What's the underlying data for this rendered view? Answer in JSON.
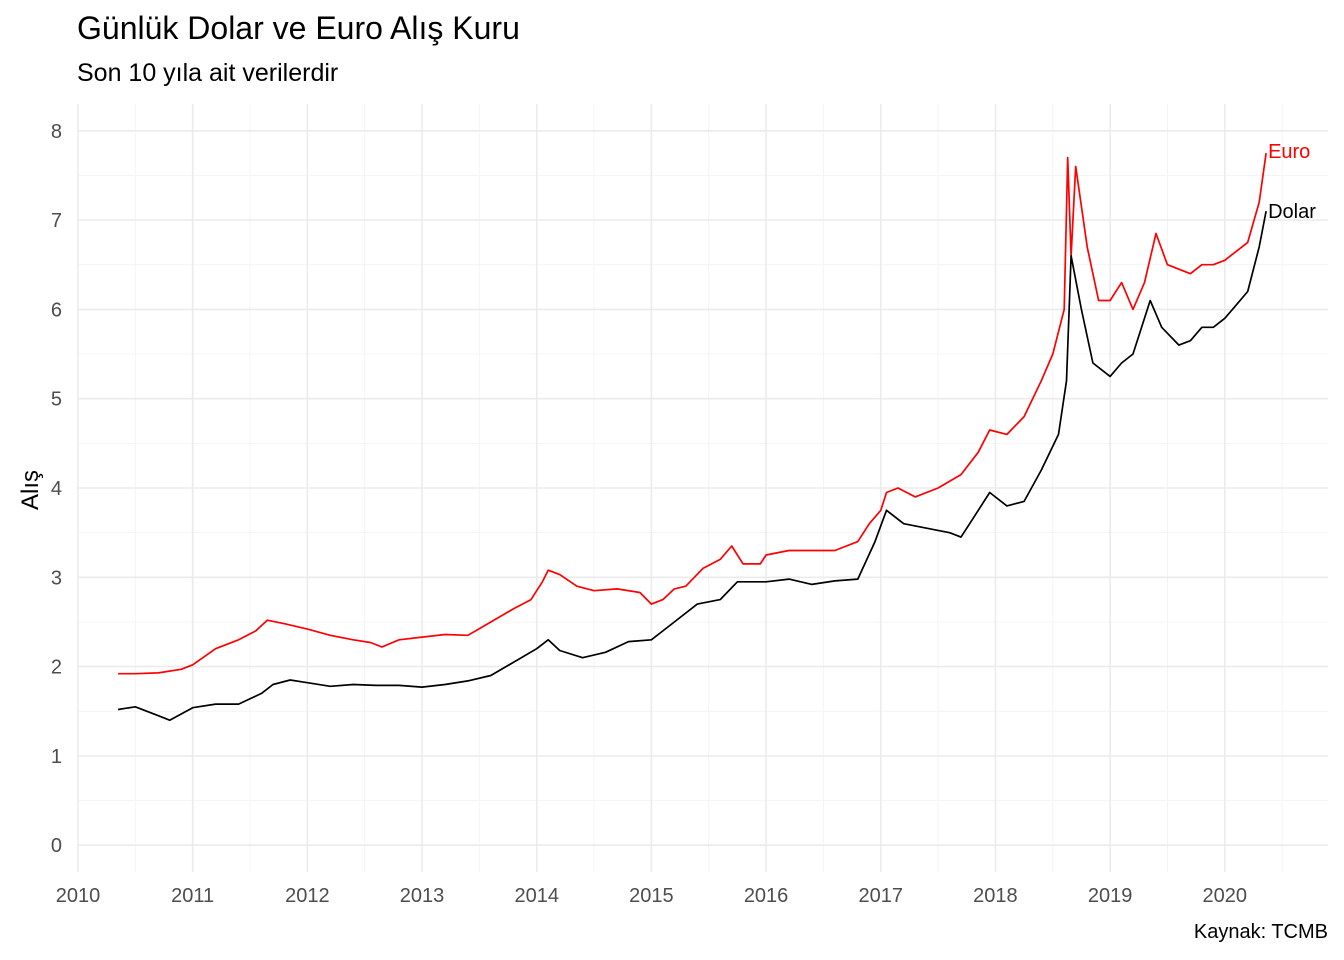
{
  "title": "Günlük Dolar ve Euro Alış Kuru",
  "subtitle": "Son 10 yıla ait verilerdir",
  "caption": "Kaynak: TCMB",
  "chart_data": {
    "type": "line",
    "title": "Günlük Dolar ve Euro Alış Kuru",
    "subtitle": "Son 10 yıla ait verilerdir",
    "xlabel": "",
    "ylabel": "Alış",
    "xlim": [
      2010,
      2020.9
    ],
    "ylim": [
      -0.3,
      8.3
    ],
    "x_ticks": [
      "2010",
      "2011",
      "2012",
      "2013",
      "2014",
      "2015",
      "2016",
      "2017",
      "2018",
      "2019",
      "2020"
    ],
    "y_ticks": [
      0,
      1,
      2,
      3,
      4,
      5,
      6,
      7,
      8
    ],
    "grid": true,
    "legend": "none (direct labels at line ends)",
    "series": [
      {
        "name": "Euro",
        "color": "#ff0000",
        "x": [
          2010.35,
          2010.5,
          2010.7,
          2010.9,
          2011.0,
          2011.2,
          2011.4,
          2011.55,
          2011.65,
          2011.8,
          2012.0,
          2012.2,
          2012.4,
          2012.55,
          2012.65,
          2012.8,
          2013.0,
          2013.2,
          2013.4,
          2013.6,
          2013.8,
          2013.95,
          2014.05,
          2014.1,
          2014.2,
          2014.35,
          2014.5,
          2014.7,
          2014.9,
          2015.0,
          2015.1,
          2015.2,
          2015.3,
          2015.45,
          2015.6,
          2015.7,
          2015.8,
          2015.95,
          2016.0,
          2016.2,
          2016.4,
          2016.6,
          2016.8,
          2016.9,
          2017.0,
          2017.05,
          2017.15,
          2017.3,
          2017.5,
          2017.7,
          2017.85,
          2017.95,
          2018.1,
          2018.25,
          2018.4,
          2018.5,
          2018.6,
          2018.63,
          2018.66,
          2018.7,
          2018.8,
          2018.9,
          2019.0,
          2019.1,
          2019.2,
          2019.3,
          2019.4,
          2019.5,
          2019.6,
          2019.7,
          2019.8,
          2019.9,
          2020.0,
          2020.1,
          2020.2,
          2020.3,
          2020.36
        ],
        "values": [
          1.92,
          1.92,
          1.93,
          1.97,
          2.02,
          2.2,
          2.3,
          2.4,
          2.52,
          2.48,
          2.42,
          2.35,
          2.3,
          2.27,
          2.22,
          2.3,
          2.33,
          2.36,
          2.35,
          2.5,
          2.65,
          2.75,
          2.95,
          3.08,
          3.03,
          2.9,
          2.85,
          2.87,
          2.83,
          2.7,
          2.75,
          2.87,
          2.9,
          3.1,
          3.2,
          3.35,
          3.15,
          3.15,
          3.25,
          3.3,
          3.3,
          3.3,
          3.4,
          3.6,
          3.75,
          3.95,
          4.0,
          3.9,
          4.0,
          4.15,
          4.4,
          4.65,
          4.6,
          4.8,
          5.2,
          5.5,
          6.0,
          7.7,
          6.6,
          7.6,
          6.7,
          6.1,
          6.1,
          6.3,
          6.0,
          6.3,
          6.85,
          6.5,
          6.45,
          6.4,
          6.5,
          6.5,
          6.55,
          6.65,
          6.75,
          7.2,
          7.75
        ],
        "end_label": "Euro"
      },
      {
        "name": "Dolar",
        "color": "#000000",
        "x": [
          2010.35,
          2010.5,
          2010.7,
          2010.8,
          2011.0,
          2011.2,
          2011.4,
          2011.6,
          2011.7,
          2011.85,
          2012.0,
          2012.2,
          2012.4,
          2012.6,
          2012.8,
          2013.0,
          2013.2,
          2013.4,
          2013.6,
          2013.8,
          2014.0,
          2014.1,
          2014.2,
          2014.4,
          2014.6,
          2014.8,
          2015.0,
          2015.2,
          2015.4,
          2015.6,
          2015.75,
          2015.9,
          2016.0,
          2016.2,
          2016.4,
          2016.6,
          2016.8,
          2016.95,
          2017.05,
          2017.2,
          2017.4,
          2017.6,
          2017.7,
          2017.8,
          2017.95,
          2018.1,
          2018.25,
          2018.4,
          2018.55,
          2018.62,
          2018.66,
          2018.75,
          2018.85,
          2019.0,
          2019.1,
          2019.2,
          2019.35,
          2019.45,
          2019.6,
          2019.7,
          2019.8,
          2019.9,
          2020.0,
          2020.1,
          2020.2,
          2020.3,
          2020.36
        ],
        "values": [
          1.52,
          1.55,
          1.45,
          1.4,
          1.54,
          1.58,
          1.58,
          1.7,
          1.8,
          1.85,
          1.82,
          1.78,
          1.8,
          1.79,
          1.79,
          1.77,
          1.8,
          1.84,
          1.9,
          2.05,
          2.2,
          2.3,
          2.18,
          2.1,
          2.16,
          2.28,
          2.3,
          2.5,
          2.7,
          2.75,
          2.95,
          2.95,
          2.95,
          2.98,
          2.92,
          2.96,
          2.98,
          3.4,
          3.75,
          3.6,
          3.55,
          3.5,
          3.45,
          3.65,
          3.95,
          3.8,
          3.85,
          4.2,
          4.6,
          5.2,
          6.6,
          6.0,
          5.4,
          5.25,
          5.4,
          5.5,
          6.1,
          5.8,
          5.6,
          5.65,
          5.8,
          5.8,
          5.9,
          6.05,
          6.2,
          6.7,
          7.1
        ],
        "end_label": "Dolar"
      }
    ]
  }
}
